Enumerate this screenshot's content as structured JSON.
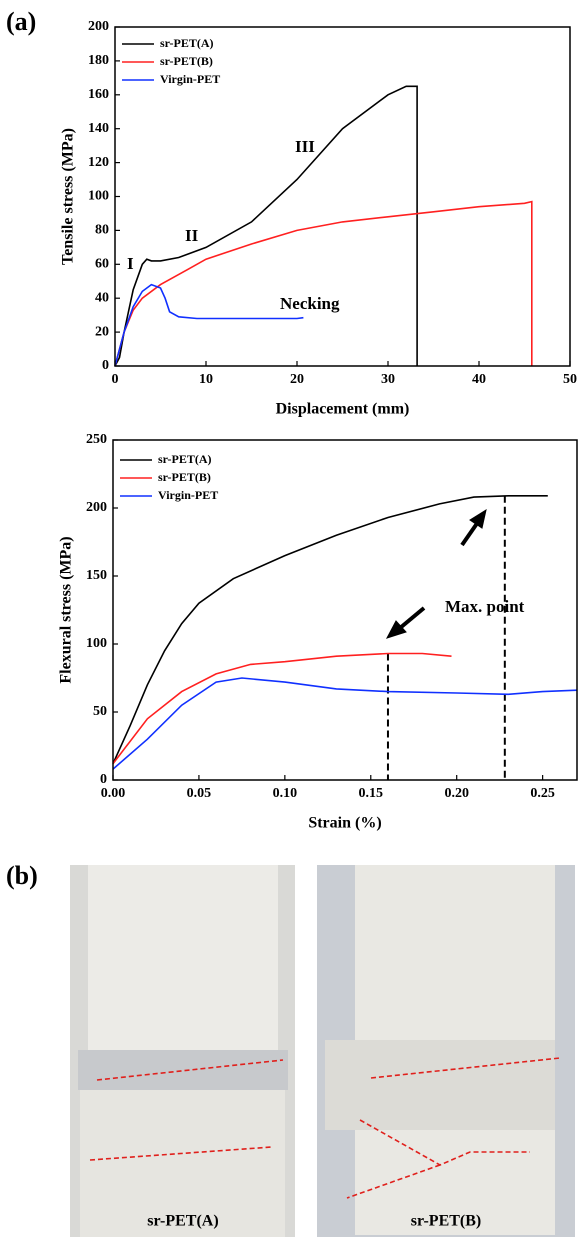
{
  "panels": [
    "(a)",
    "(b)"
  ],
  "photos": [
    {
      "label": "sr-PET(A)"
    },
    {
      "label": "sr-PET(B)"
    }
  ],
  "chart_data": [
    {
      "type": "line",
      "x_label": "Displacement (mm)",
      "y_label": "Tensile stress (MPa)",
      "xlim": [
        0,
        50
      ],
      "xticks": [
        0,
        10,
        20,
        30,
        40,
        50
      ],
      "ylim": [
        0,
        200
      ],
      "yticks": [
        0,
        20,
        40,
        60,
        80,
        100,
        120,
        140,
        160,
        180,
        200
      ],
      "legend": "upper-left",
      "annotations": [
        "I",
        "II",
        "III",
        "Necking"
      ],
      "series": [
        {
          "name": "sr-PET(A)",
          "color": "#000000",
          "x": [
            0,
            0.5,
            1,
            2,
            3,
            3.5,
            4,
            5,
            7,
            10,
            15,
            20,
            25,
            30,
            32,
            33,
            33.2,
            33.2
          ],
          "values": [
            0,
            5,
            20,
            45,
            60,
            63,
            62,
            62,
            64,
            70,
            85,
            110,
            140,
            160,
            165,
            165,
            165,
            0
          ]
        },
        {
          "name": "sr-PET(B)",
          "color": "#ff2020",
          "x": [
            0,
            1,
            2,
            3,
            5,
            8,
            10,
            15,
            20,
            25,
            30,
            35,
            40,
            45,
            45.8,
            45.8
          ],
          "values": [
            0,
            20,
            33,
            40,
            48,
            57,
            63,
            72,
            80,
            85,
            88,
            91,
            94,
            96,
            97,
            0
          ]
        },
        {
          "name": "Virgin-PET",
          "color": "#1030ff",
          "x": [
            0,
            1,
            2,
            3,
            4,
            5,
            5.5,
            6,
            7,
            9,
            12,
            15,
            20,
            20.7
          ],
          "values": [
            0,
            20,
            35,
            44,
            48,
            46,
            40,
            32,
            29,
            28,
            28,
            28,
            28,
            28.5
          ]
        }
      ]
    },
    {
      "type": "line",
      "x_label": "Strain (%)",
      "y_label": "Flexural stress (MPa)",
      "xlim": [
        0,
        0.27
      ],
      "xticks": [
        {
          "value": 0,
          "label": "0.00"
        },
        0.05,
        {
          "value": 0.1,
          "label": "0.10"
        },
        0.15,
        {
          "value": 0.2,
          "label": "0.20"
        },
        0.25
      ],
      "ylim": [
        0,
        250
      ],
      "yticks": [
        0,
        50,
        100,
        150,
        200,
        250
      ],
      "legend": "upper-left",
      "annotations": [
        "Max. point"
      ],
      "vlines": [
        {
          "x": 0.16,
          "y": 93
        },
        {
          "x": 0.228,
          "y": 209
        }
      ],
      "series": [
        {
          "name": "sr-PET(A)",
          "color": "#000000",
          "x": [
            0,
            0.01,
            0.02,
            0.03,
            0.04,
            0.05,
            0.07,
            0.1,
            0.13,
            0.16,
            0.19,
            0.21,
            0.23,
            0.253
          ],
          "values": [
            12,
            40,
            70,
            95,
            115,
            130,
            148,
            165,
            180,
            193,
            203,
            208,
            209,
            209
          ]
        },
        {
          "name": "sr-PET(B)",
          "color": "#ff2020",
          "x": [
            0,
            0.02,
            0.04,
            0.06,
            0.08,
            0.1,
            0.13,
            0.16,
            0.18,
            0.197
          ],
          "values": [
            12,
            45,
            65,
            78,
            85,
            87,
            91,
            93,
            93,
            91
          ]
        },
        {
          "name": "Virgin-PET",
          "color": "#1030ff",
          "x": [
            0,
            0.02,
            0.04,
            0.06,
            0.075,
            0.1,
            0.13,
            0.16,
            0.2,
            0.23,
            0.25,
            0.27
          ],
          "values": [
            8,
            30,
            55,
            72,
            75,
            72,
            67,
            65,
            64,
            63,
            65,
            66
          ]
        }
      ]
    }
  ]
}
